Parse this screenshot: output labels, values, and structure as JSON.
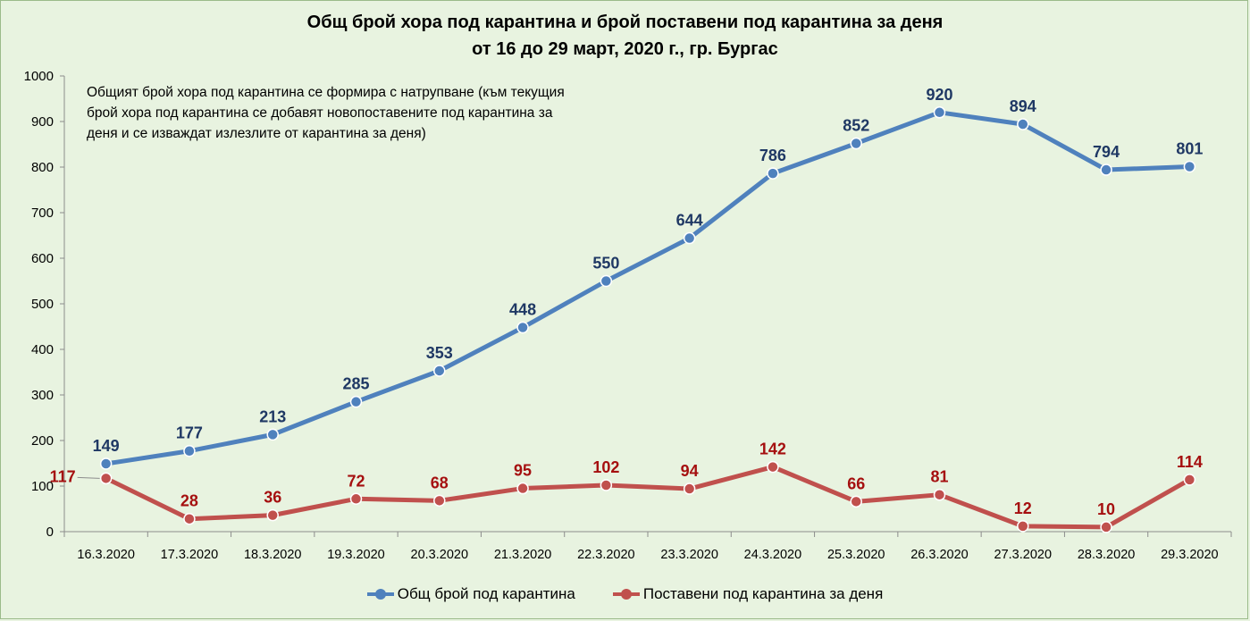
{
  "chart_data": {
    "type": "line",
    "title": "Общ брой хора под карантина и брой поставени под карантина за деня",
    "subtitle": "от 16 до 29 март, 2020 г., гр. Бургас",
    "annotation": "Общият брой хора под карантина се формира с натрупване (към текущия брой хора под карантина се добавят новопоставените под карантина за деня и се изваждат излезлите от карантина за деня)",
    "categories": [
      "16.3.2020",
      "17.3.2020",
      "18.3.2020",
      "19.3.2020",
      "20.3.2020",
      "21.3.2020",
      "22.3.2020",
      "23.3.2020",
      "24.3.2020",
      "25.3.2020",
      "26.3.2020",
      "27.3.2020",
      "28.3.2020",
      "29.3.2020"
    ],
    "ylim": [
      0,
      1000
    ],
    "yticks": [
      "0",
      "100",
      "200",
      "300",
      "400",
      "500",
      "600",
      "700",
      "800",
      "900",
      "1000"
    ],
    "grid": false,
    "legend_position": "bottom",
    "series": [
      {
        "name": "Общ брой под карантина",
        "color": "#4f81bd",
        "label_color": "#1f3864",
        "values": [
          149,
          177,
          213,
          285,
          353,
          448,
          550,
          644,
          786,
          852,
          920,
          894,
          794,
          801
        ]
      },
      {
        "name": "Поставени  под карантина  за деня",
        "color": "#c0504d",
        "label_color": "#a50f0f",
        "values": [
          117,
          28,
          36,
          72,
          68,
          95,
          102,
          94,
          142,
          66,
          81,
          12,
          10,
          114
        ]
      }
    ]
  }
}
